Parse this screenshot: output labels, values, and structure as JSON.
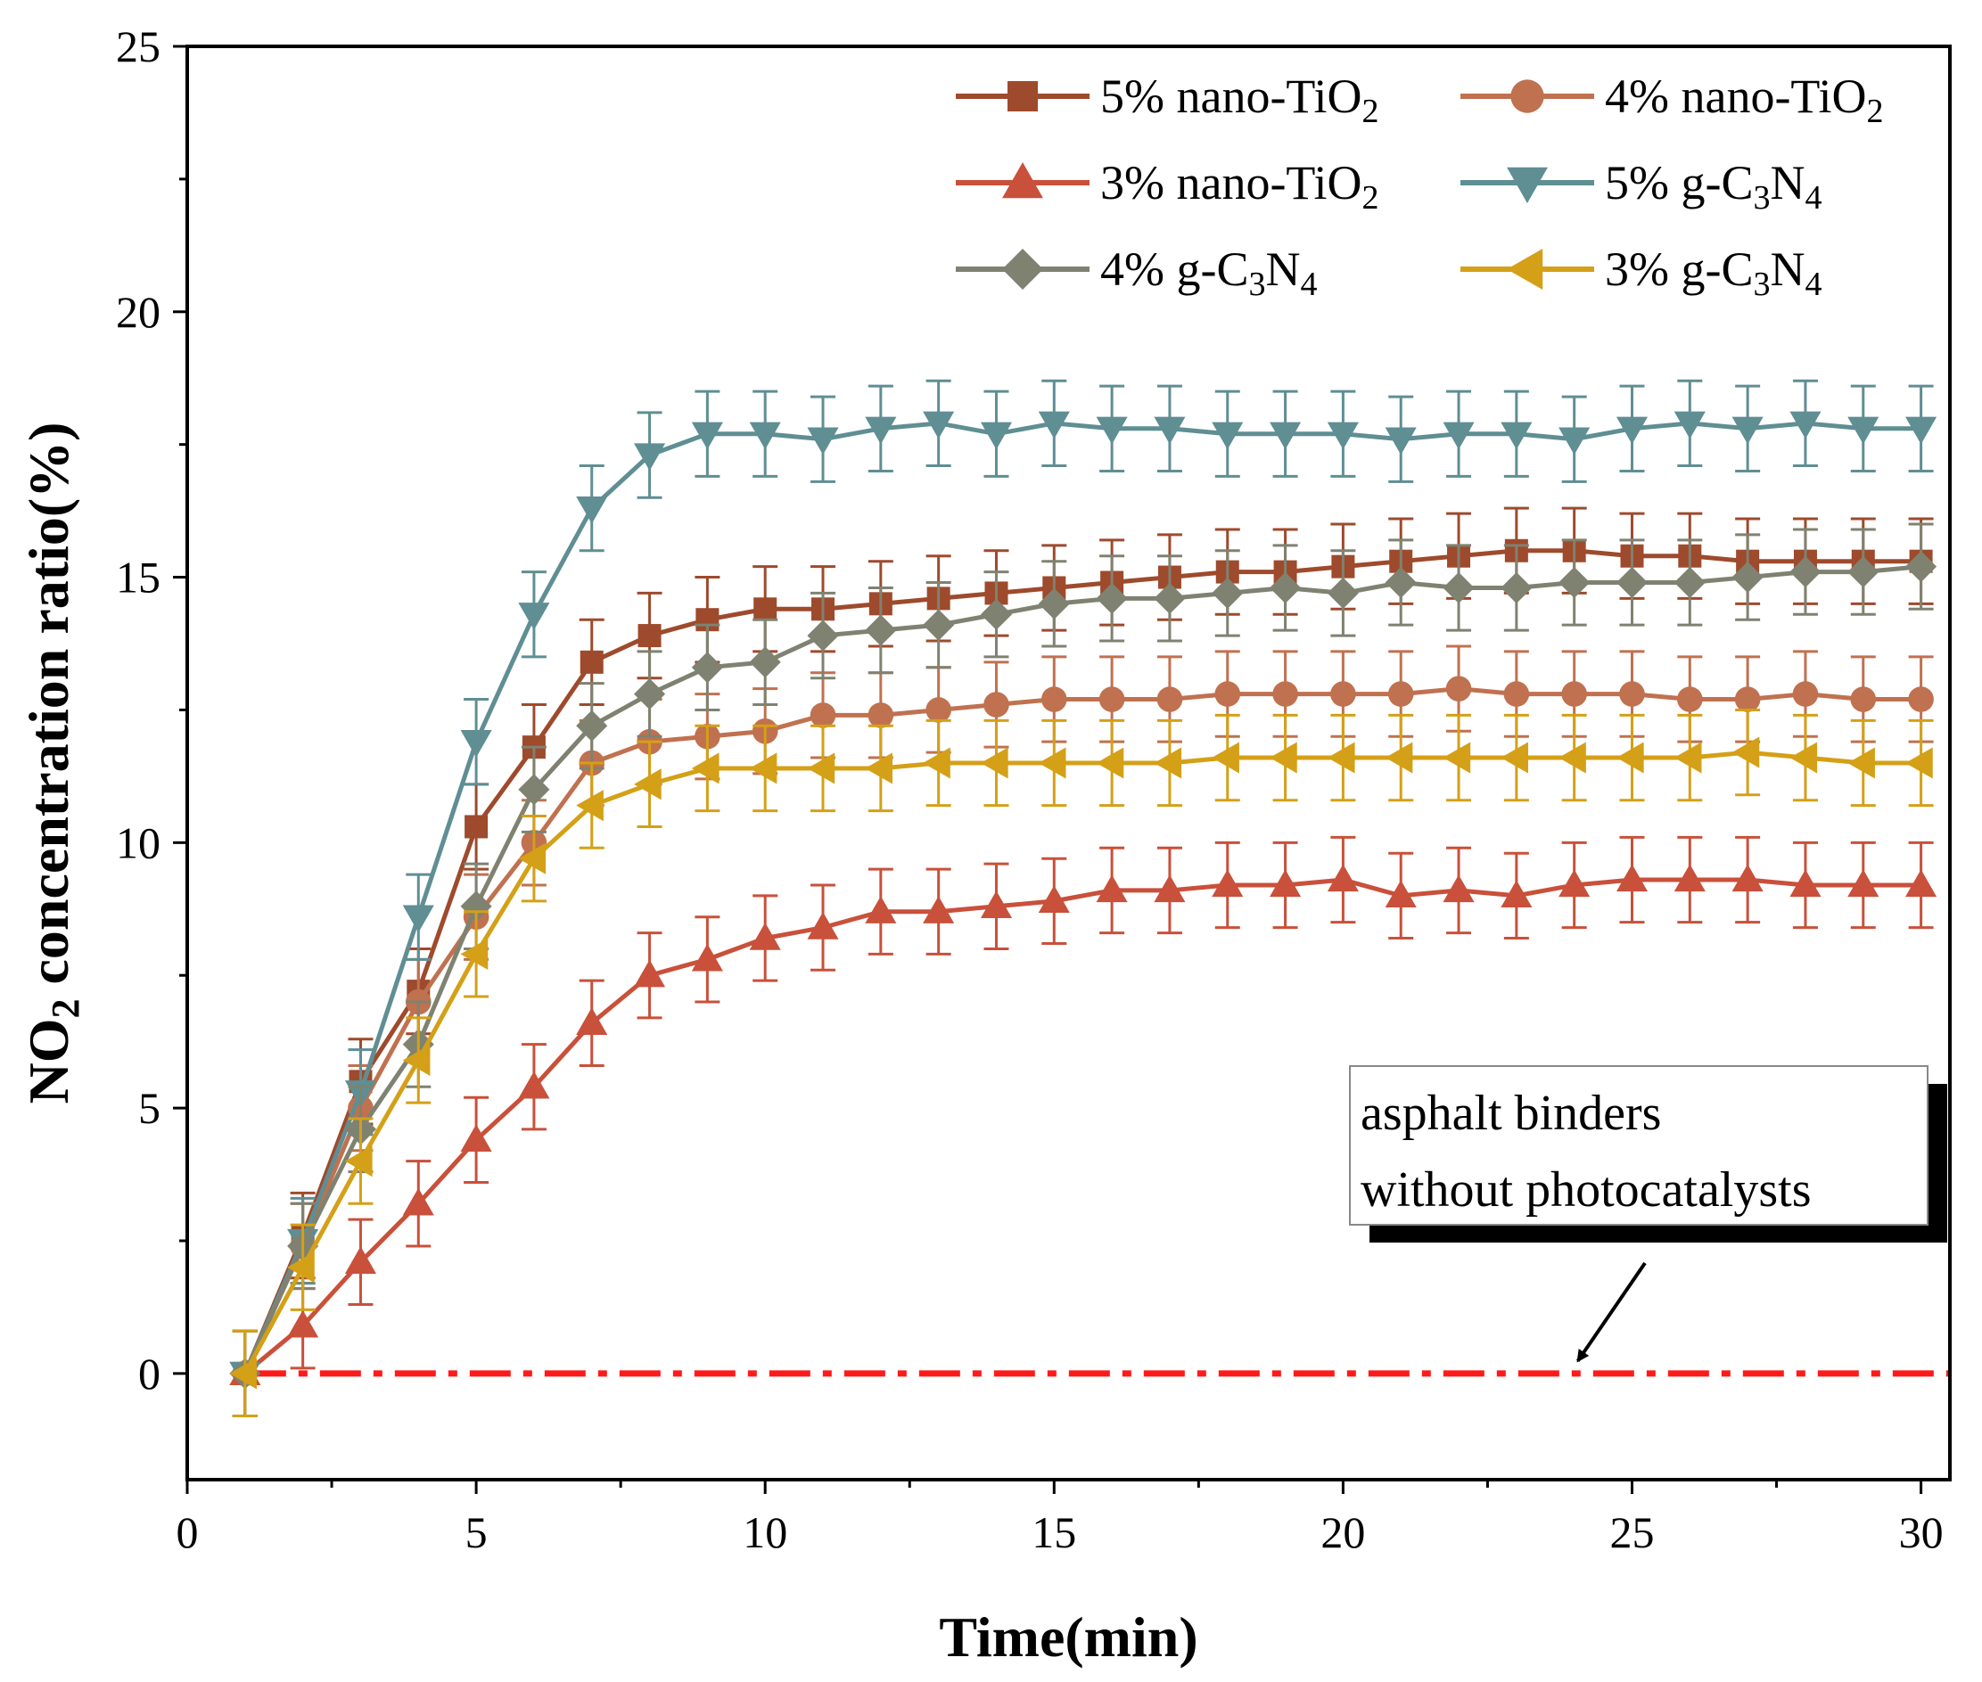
{
  "chart_data": {
    "type": "line",
    "xlabel": "Time(min)",
    "ylabel": {
      "pre": "NO",
      "sub": "2",
      "post": " concentration ratio(%)"
    },
    "xlim": [
      0,
      30.5
    ],
    "ylim": [
      -2,
      25
    ],
    "xticks": [
      0,
      5,
      10,
      15,
      20,
      25,
      30
    ],
    "yticks": [
      0,
      5,
      10,
      15,
      20,
      25
    ],
    "x": [
      1,
      2,
      3,
      4,
      5,
      6,
      7,
      8,
      9,
      10,
      11,
      12,
      13,
      14,
      15,
      16,
      17,
      18,
      19,
      20,
      21,
      22,
      23,
      24,
      25,
      26,
      27,
      28,
      29,
      30
    ],
    "error_bar": 0.8,
    "series": [
      {
        "name": "5% nano-TiO2",
        "label": [
          {
            "t": "5% nano-TiO"
          },
          {
            "t": "2",
            "sub": true
          }
        ],
        "color": "#9e4a2c",
        "marker": "square",
        "values": [
          0,
          2.6,
          5.5,
          7.2,
          10.3,
          11.8,
          13.4,
          13.9,
          14.2,
          14.4,
          14.4,
          14.5,
          14.6,
          14.7,
          14.8,
          14.9,
          15.0,
          15.1,
          15.1,
          15.2,
          15.3,
          15.4,
          15.5,
          15.5,
          15.4,
          15.4,
          15.3,
          15.3,
          15.3,
          15.3
        ]
      },
      {
        "name": "4% nano-TiO2",
        "label": [
          {
            "t": "4% nano-TiO"
          },
          {
            "t": "2",
            "sub": true
          }
        ],
        "color": "#c0714f",
        "marker": "circle",
        "values": [
          0,
          2.4,
          5.0,
          7.0,
          8.6,
          10.0,
          11.5,
          11.9,
          12.0,
          12.1,
          12.4,
          12.4,
          12.5,
          12.6,
          12.7,
          12.7,
          12.7,
          12.8,
          12.8,
          12.8,
          12.8,
          12.9,
          12.8,
          12.8,
          12.8,
          12.7,
          12.7,
          12.8,
          12.7,
          12.7
        ]
      },
      {
        "name": "3% nano-TiO2",
        "label": [
          {
            "t": "3% nano-TiO"
          },
          {
            "t": "2",
            "sub": true
          }
        ],
        "color": "#c9503a",
        "marker": "triangle-up",
        "values": [
          0,
          0.9,
          2.1,
          3.2,
          4.4,
          5.4,
          6.6,
          7.5,
          7.8,
          8.2,
          8.4,
          8.7,
          8.7,
          8.8,
          8.9,
          9.1,
          9.1,
          9.2,
          9.2,
          9.3,
          9.0,
          9.1,
          9.0,
          9.2,
          9.3,
          9.3,
          9.3,
          9.2,
          9.2,
          9.2
        ]
      },
      {
        "name": "5% g-C3N4",
        "label": [
          {
            "t": "5% g-C"
          },
          {
            "t": "3",
            "sub": true
          },
          {
            "t": "N"
          },
          {
            "t": "4",
            "sub": true
          }
        ],
        "color": "#5f8e93",
        "marker": "triangle-down",
        "values": [
          0,
          2.5,
          5.3,
          8.6,
          11.9,
          14.3,
          16.3,
          17.3,
          17.7,
          17.7,
          17.6,
          17.8,
          17.9,
          17.7,
          17.9,
          17.8,
          17.8,
          17.7,
          17.7,
          17.7,
          17.6,
          17.7,
          17.7,
          17.6,
          17.8,
          17.9,
          17.8,
          17.9,
          17.8,
          17.8
        ]
      },
      {
        "name": "4% g-C3N4",
        "label": [
          {
            "t": "4% g-C"
          },
          {
            "t": "3",
            "sub": true
          },
          {
            "t": "N"
          },
          {
            "t": "4",
            "sub": true
          }
        ],
        "color": "#7f8270",
        "marker": "diamond",
        "values": [
          0,
          2.4,
          4.6,
          6.2,
          8.8,
          11.0,
          12.2,
          12.8,
          13.3,
          13.4,
          13.9,
          14.0,
          14.1,
          14.3,
          14.5,
          14.6,
          14.6,
          14.7,
          14.8,
          14.7,
          14.9,
          14.8,
          14.8,
          14.9,
          14.9,
          14.9,
          15.0,
          15.1,
          15.1,
          15.2
        ]
      },
      {
        "name": "3% g-C3N4",
        "label": [
          {
            "t": "3% g-C"
          },
          {
            "t": "3",
            "sub": true
          },
          {
            "t": "N"
          },
          {
            "t": "4",
            "sub": true
          }
        ],
        "color": "#d4a017",
        "marker": "triangle-left",
        "values": [
          0,
          2.0,
          4.0,
          5.9,
          7.9,
          9.7,
          10.7,
          11.1,
          11.4,
          11.4,
          11.4,
          11.4,
          11.5,
          11.5,
          11.5,
          11.5,
          11.5,
          11.6,
          11.6,
          11.6,
          11.6,
          11.6,
          11.6,
          11.6,
          11.6,
          11.6,
          11.7,
          11.6,
          11.5,
          11.5
        ]
      }
    ],
    "baseline": {
      "y": 0,
      "x_range": [
        1,
        30.5
      ],
      "color": "#ff1a1a",
      "style": "dash-dot"
    },
    "annotation": {
      "lines": [
        "asphalt binders",
        "without photocatalysts"
      ],
      "arrow_to": {
        "x": 24,
        "y": 0
      }
    },
    "legend": {
      "position": "top-right",
      "columns": 2
    }
  }
}
